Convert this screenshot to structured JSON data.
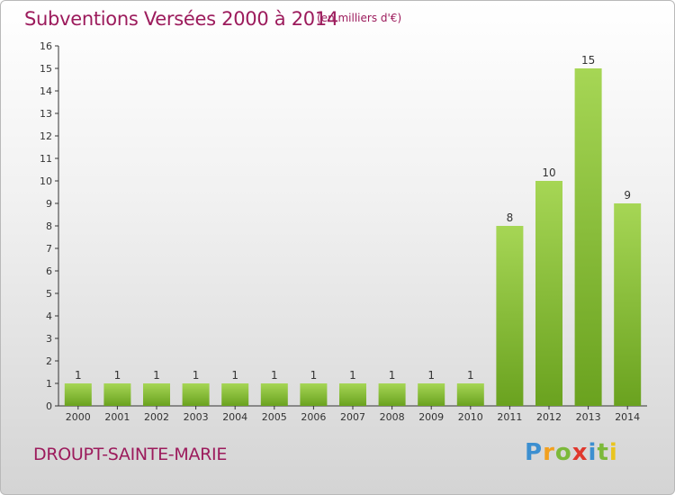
{
  "title": "Subventions Versées 2000 à 2014",
  "subtitle": "(en milliers d'€)",
  "commune": "DROUPT-SAINTE-MARIE",
  "logo": {
    "letters": [
      "P",
      "r",
      "o",
      "x",
      "i",
      "t",
      "i"
    ],
    "colors": [
      "#3c8fd0",
      "#f2a01f",
      "#7cb93a",
      "#e0382d",
      "#3c8fd0",
      "#7cb93a",
      "#e9c41f"
    ]
  },
  "colors": {
    "bar_top": "#a6d655",
    "bar_bottom": "#6aa21f",
    "axis": "#333333",
    "title": "#9c1b5c"
  },
  "chart_data": {
    "type": "bar",
    "categories": [
      "2000",
      "2001",
      "2002",
      "2003",
      "2004",
      "2005",
      "2006",
      "2007",
      "2008",
      "2009",
      "2010",
      "2011",
      "2012",
      "2013",
      "2014"
    ],
    "values": [
      1,
      1,
      1,
      1,
      1,
      1,
      1,
      1,
      1,
      1,
      1,
      8,
      10,
      15,
      9
    ],
    "data_labels": [
      "1",
      "1",
      "1",
      "1",
      "1",
      "1",
      "1",
      "1",
      "1",
      "1",
      "1",
      "8",
      "10",
      "15",
      "9"
    ],
    "ylim": [
      0,
      16
    ],
    "yticks": [
      0,
      1,
      2,
      3,
      4,
      5,
      6,
      7,
      8,
      9,
      10,
      11,
      12,
      13,
      14,
      15,
      16
    ],
    "title": "Subventions Versées 2000 à 2014",
    "xlabel": "",
    "ylabel": "",
    "grid": false
  }
}
